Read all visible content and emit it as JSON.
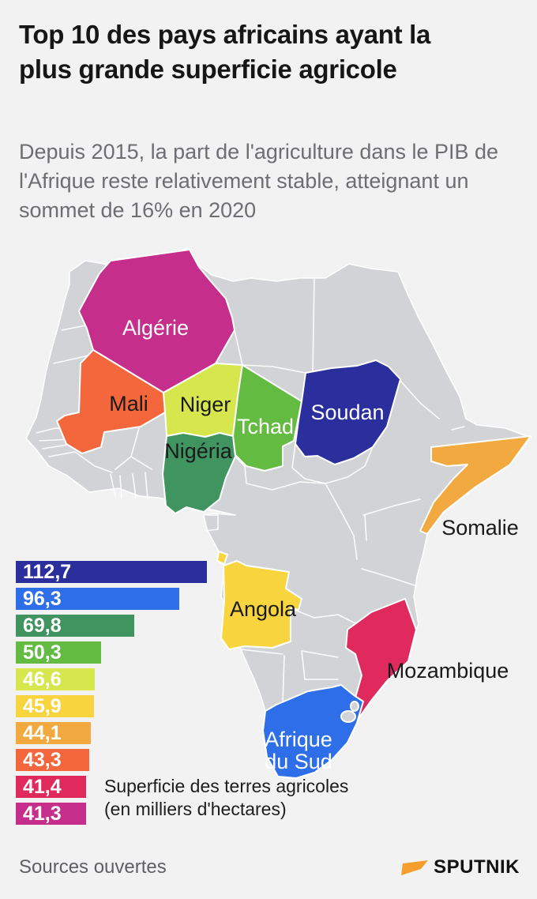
{
  "page": {
    "background": "#f2f2f3"
  },
  "header": {
    "title": "Top 10 des pays africains ayant la plus grande superficie agricole",
    "subtitle": "Depuis 2015, la part de l'agriculture dans le PIB de l'Afrique reste relativement stable, atteignant un sommet de 16% en 2020"
  },
  "chart_data": {
    "type": "bar",
    "title": "Superficie des terres agricoles (en milliers d'hectares)",
    "categories": [
      "Soudan",
      "Afrique du Sud",
      "Nigéria",
      "Tchad",
      "Niger",
      "Angola",
      "Somalie",
      "Mali",
      "Mozambique",
      "Algérie"
    ],
    "values": [
      112.7,
      96.3,
      69.8,
      50.3,
      46.6,
      45.9,
      44.1,
      43.3,
      41.4,
      41.3
    ],
    "value_labels": [
      "112,7",
      "96,3",
      "69,8",
      "50,3",
      "46,6",
      "45,9",
      "44,1",
      "43,3",
      "41,4",
      "41,3"
    ],
    "colors": [
      "#2b2f9e",
      "#2e6fe9",
      "#3f9460",
      "#64bb41",
      "#d6e64d",
      "#f8d43f",
      "#f2a93f",
      "#f4673d",
      "#e02a5e",
      "#c62e8c"
    ],
    "xmax": 112.7,
    "xlabel": "",
    "ylabel": "",
    "grid": false,
    "legend_position": "bottom-left"
  },
  "legend": {
    "line1": "Superficie des terres agricoles",
    "line2": "(en milliers d'hectares)"
  },
  "map": {
    "base_color": "#d2d3d6",
    "border_color": "#ffffff",
    "countries": [
      {
        "name": "Soudan",
        "color": "#2b2f9e",
        "label_color": "#ffffff"
      },
      {
        "name": "Afrique du Sud",
        "label_line1": "Afrique",
        "label_line2": "du Sud",
        "color": "#2e6fe9",
        "label_color": "#ffffff"
      },
      {
        "name": "Nigéria",
        "color": "#3f9460",
        "label_color": "#1a1a1a"
      },
      {
        "name": "Tchad",
        "color": "#64bb41",
        "label_color": "#ffffff"
      },
      {
        "name": "Niger",
        "color": "#d6e64d",
        "label_color": "#1a1a1a"
      },
      {
        "name": "Angola",
        "color": "#f8d43f",
        "label_color": "#1a1a1a"
      },
      {
        "name": "Somalie",
        "color": "#f2a93f",
        "label_color": "#1a1a1a"
      },
      {
        "name": "Mali",
        "color": "#f4673d",
        "label_color": "#1a1a1a"
      },
      {
        "name": "Mozambique",
        "color": "#e02a5e",
        "label_color": "#1a1a1a"
      },
      {
        "name": "Algérie",
        "color": "#c62e8c",
        "label_color": "#ffffff"
      }
    ]
  },
  "footer": {
    "source": "Sources ouvertes",
    "brand": "SPUTNIK",
    "brand_color": "#f59e2e"
  }
}
